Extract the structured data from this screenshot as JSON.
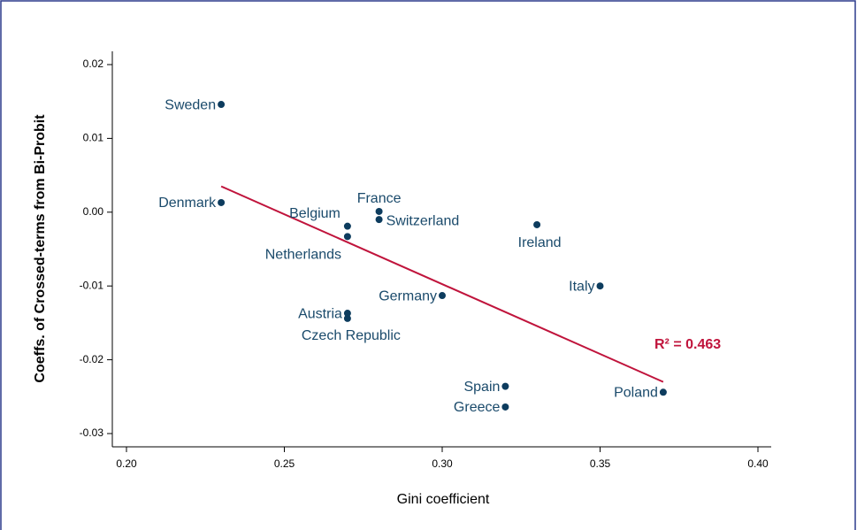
{
  "chart_data": {
    "type": "scatter",
    "x_label": "Gini coefficient",
    "y_label": "Coeffs. of Crossed-terms from Bi-Probit",
    "labels": [
      "Sweden",
      "Denmark",
      "Belgium",
      "Netherlands",
      "France",
      "Switzerland",
      "Ireland",
      "Italy",
      "Germany",
      "Austria",
      "Czech Republic",
      "Spain",
      "Greece",
      "Poland"
    ],
    "x": [
      0.23,
      0.23,
      0.27,
      0.27,
      0.28,
      0.28,
      0.33,
      0.35,
      0.3,
      0.27,
      0.27,
      0.32,
      0.32,
      0.37
    ],
    "values": [
      0.0146,
      0.0013,
      -0.0019,
      -0.0033,
      0.0001,
      -0.001,
      -0.0017,
      -0.01,
      -0.0113,
      -0.0137,
      -0.0144,
      -0.0236,
      -0.0264,
      -0.0244
    ],
    "color": "#0d3c5e",
    "fit": {
      "x": [
        0.23,
        0.37
      ],
      "values": [
        0.0035,
        -0.023
      ],
      "color": "#c0143c"
    },
    "annotation": "R² = 0.463",
    "xlim": [
      0.195,
      0.405
    ],
    "ylim": [
      -0.0315,
      0.0215
    ],
    "xticks": [
      {
        "value": 0.2,
        "label": "0.20"
      },
      0.25,
      {
        "value": 0.3,
        "label": "0.30"
      },
      0.35,
      {
        "value": 0.4,
        "label": "0.40"
      }
    ],
    "yticks": [
      0.02,
      0.01,
      {
        "value": 0,
        "label": "0.00"
      },
      -0.01,
      -0.02,
      -0.03
    ]
  }
}
